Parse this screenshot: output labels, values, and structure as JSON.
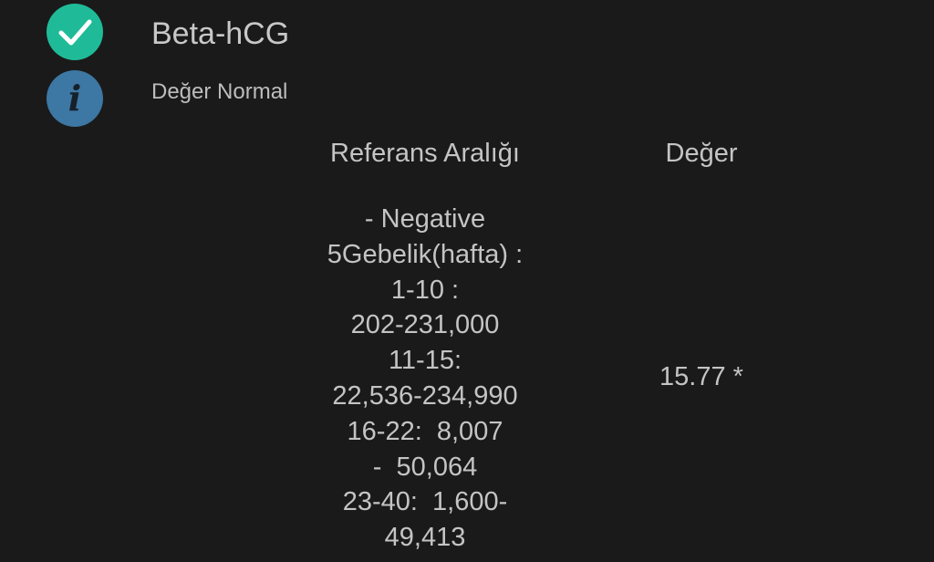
{
  "test": {
    "name": "Beta-hCG",
    "status": "Değer Normal",
    "status_icon": "check-circle-icon",
    "info_icon": "info-icon",
    "colors": {
      "check": "#1fbb98",
      "info": "#3d77a3",
      "background": "#1a1a1a"
    }
  },
  "table": {
    "headers": {
      "reference": "Referans Aralığı",
      "value": "Değer"
    },
    "reference_lines": [
      "- Negative",
      "5Gebelik(hafta) :",
      "1-10 :",
      "202-231,000",
      "11-15:",
      "22,536-234,990",
      "16-22:  8,007",
      "-  50,064",
      "23-40:  1,600-",
      "49,413"
    ],
    "value": "15.77 *"
  }
}
